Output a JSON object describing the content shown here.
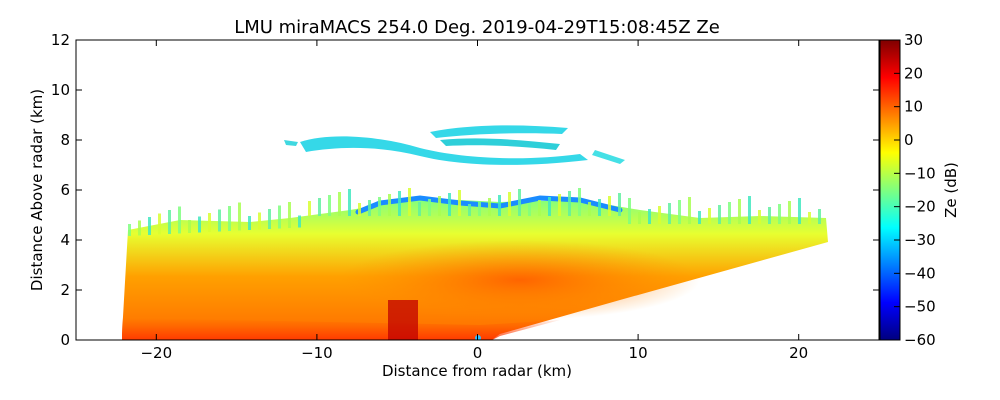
{
  "chart_data": {
    "type": "heatmap",
    "title": "LMU miraMACS 254.0 Deg. 2019-04-29T15:08:45Z  Ze",
    "xlabel": "Distance from radar (km)",
    "ylabel": "Distance Above radar  (km)",
    "xlim": [
      -25,
      25
    ],
    "ylim": [
      0,
      12
    ],
    "xticks": [
      -20,
      -10,
      0,
      10,
      20
    ],
    "xtick_labels": [
      "−20",
      "−10",
      "0",
      "10",
      "20"
    ],
    "yticks": [
      0,
      2,
      4,
      6,
      8,
      10,
      12
    ],
    "ytick_labels": [
      "0",
      "2",
      "4",
      "6",
      "8",
      "10",
      "12"
    ],
    "colorbar": {
      "label": "Ze (dB)",
      "range": [
        -60,
        30
      ],
      "ticks": [
        30,
        20,
        10,
        0,
        -10,
        -20,
        -30,
        -40,
        -50,
        -60
      ],
      "tick_labels": [
        "30",
        "20",
        "10",
        "0",
        "−10",
        "−20",
        "−30",
        "−40",
        "−50",
        "−60"
      ],
      "colormap": [
        "#00007f",
        "#0000ff",
        "#007fff",
        "#00ffff",
        "#7fff7f",
        "#ffff00",
        "#ff7f00",
        "#ff0000",
        "#7f0000"
      ]
    },
    "regions": [
      {
        "name": "lower-precipitation",
        "x_range": [
          -22,
          22
        ],
        "top_km": [
          4.4,
          5.7
        ],
        "ze_mean": 10
      },
      {
        "name": "mid-cloud-top",
        "x_range": [
          -22,
          22
        ],
        "top_km": 5.8,
        "ze_mean": -15
      },
      {
        "name": "upper-cirrus",
        "x_range": [
          -12,
          9.5
        ],
        "height_km": [
          7.2,
          8.8
        ],
        "ze_mean": -25
      }
    ]
  }
}
